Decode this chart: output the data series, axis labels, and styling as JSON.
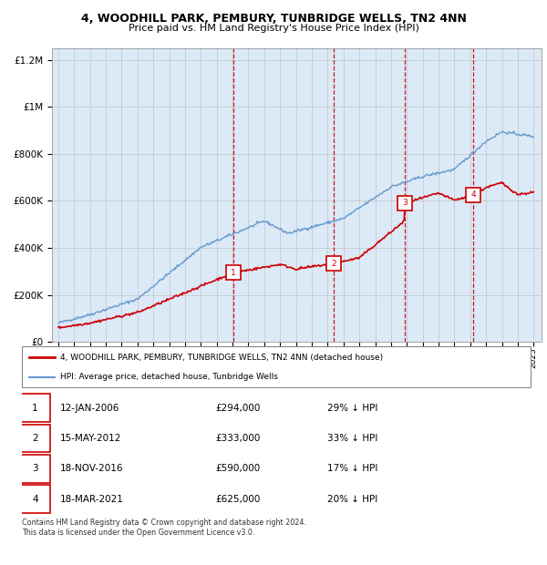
{
  "title": "4, WOODHILL PARK, PEMBURY, TUNBRIDGE WELLS, TN2 4NN",
  "subtitle": "Price paid vs. HM Land Registry's House Price Index (HPI)",
  "hpi_label": "HPI: Average price, detached house, Tunbridge Wells",
  "property_label": "4, WOODHILL PARK, PEMBURY, TUNBRIDGE WELLS, TN2 4NN (detached house)",
  "purchases": [
    {
      "num": 1,
      "date": "12-JAN-2006",
      "price": 294000,
      "pct": "29%",
      "x_year": 2006.04
    },
    {
      "num": 2,
      "date": "15-MAY-2012",
      "price": 333000,
      "pct": "33%",
      "x_year": 2012.37
    },
    {
      "num": 3,
      "date": "18-NOV-2016",
      "price": 590000,
      "pct": "17%",
      "x_year": 2016.88
    },
    {
      "num": 4,
      "date": "18-MAR-2021",
      "price": 625000,
      "pct": "20%",
      "x_year": 2021.21
    }
  ],
  "footer": "Contains HM Land Registry data © Crown copyright and database right 2024.\nThis data is licensed under the Open Government Licence v3.0.",
  "hpi_color": "#6699cc",
  "property_color": "#cc0000",
  "background_color": "#dce9f7",
  "ylim": [
    0,
    1250000
  ],
  "xlim_start": 1994.6,
  "xlim_end": 2025.5
}
